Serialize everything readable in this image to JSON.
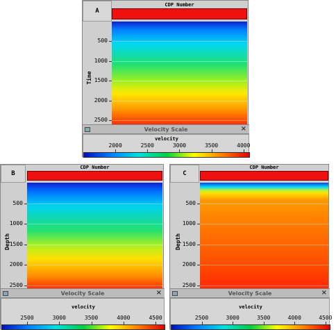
{
  "panels": [
    {
      "label": "A",
      "header": "CDP Number",
      "axis_label": "Time",
      "ylim": [
        0,
        2600
      ],
      "yticks": [
        500,
        1000,
        1500,
        2000,
        2500
      ],
      "scale_title": "Velocity Scale",
      "close": "×",
      "colorbar": {
        "label": "velocity",
        "clim": [
          1500,
          4100
        ],
        "ticks": [
          2000,
          2500,
          3000,
          3500,
          4000
        ],
        "colors": [
          "#0010c0",
          "#0080ff",
          "#00e0e0",
          "#00d040",
          "#ffff00",
          "#ff8000",
          "#e00000"
        ]
      }
    },
    {
      "label": "B",
      "header": "CDP Number",
      "axis_label": "Depth",
      "ylim": [
        0,
        2570
      ],
      "yticks": [
        500,
        1000,
        1500,
        2000,
        2500
      ],
      "scale_title": "Velocity Scale",
      "close": "×",
      "colorbar": {
        "label": "velocity",
        "clim": [
          2100,
          4650
        ],
        "ticks": [
          2500,
          3000,
          3500,
          4000,
          4500
        ],
        "colors": [
          "#0010c0",
          "#0080ff",
          "#00e0e0",
          "#00d040",
          "#ffff00",
          "#ff8000",
          "#e00000"
        ]
      }
    },
    {
      "label": "C",
      "header": "CDP Number",
      "axis_label": "Depth",
      "ylim": [
        0,
        2570
      ],
      "yticks": [
        500,
        1000,
        1500,
        2000,
        2500
      ],
      "scale_title": "Velocity Scale",
      "close": "×",
      "colorbar": {
        "label": "velocity",
        "clim": [
          2000,
          4580
        ],
        "ticks": [
          2500,
          3000,
          3500,
          4000,
          4500
        ],
        "colors": [
          "#0010c0",
          "#0080ff",
          "#00e0e0",
          "#00d040",
          "#ffff00",
          "#ff8000",
          "#e00000"
        ]
      }
    }
  ]
}
